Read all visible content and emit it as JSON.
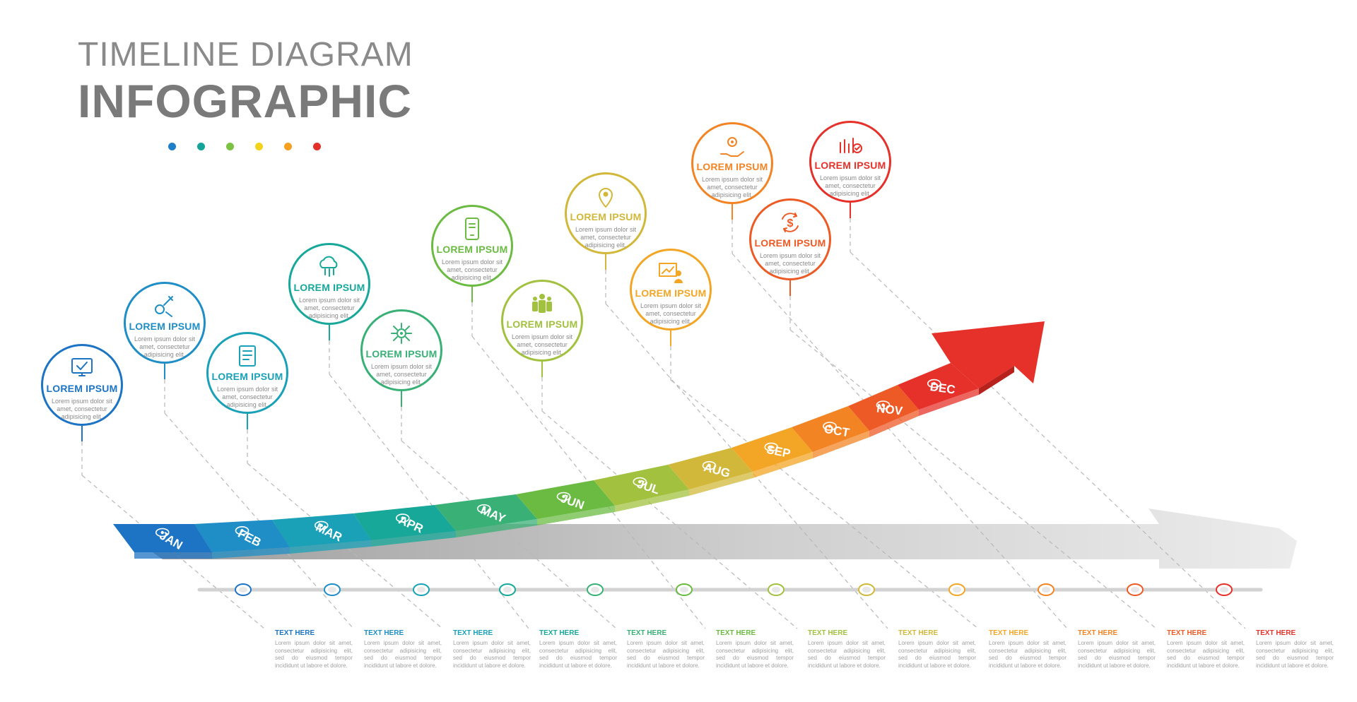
{
  "header": {
    "title_line1": "TIMELINE DIAGRAM",
    "title_line2": "INFOGRAPHIC",
    "dot_colors": [
      "#1e7ec8",
      "#14a39a",
      "#7cc242",
      "#f2d21b",
      "#f5a020",
      "#e4302a"
    ]
  },
  "months": [
    {
      "label": "JAN",
      "color": "#1d74c4",
      "icon": "monitor-check-icon"
    },
    {
      "label": "FEB",
      "color": "#1f8ec6",
      "icon": "wrench-gear-icon"
    },
    {
      "label": "MAR",
      "color": "#1aa1b8",
      "icon": "document-list-icon"
    },
    {
      "label": "APR",
      "color": "#17a89a",
      "icon": "cloud-network-icon"
    },
    {
      "label": "MAY",
      "color": "#38b076",
      "icon": "network-hub-icon"
    },
    {
      "label": "JUN",
      "color": "#6bbb43",
      "icon": "mobile-touch-icon"
    },
    {
      "label": "JUL",
      "color": "#a1c13f",
      "icon": "team-group-icon"
    },
    {
      "label": "AUG",
      "color": "#d2b83a",
      "icon": "location-pin-icon"
    },
    {
      "label": "SEP",
      "color": "#f3a626",
      "icon": "presentation-icon"
    },
    {
      "label": "OCT",
      "color": "#f38424",
      "icon": "hand-gear-icon"
    },
    {
      "label": "NOV",
      "color": "#ee5a25",
      "icon": "dollar-cycle-icon"
    },
    {
      "label": "DEC",
      "color": "#e5312a",
      "icon": "chart-people-icon"
    }
  ],
  "cards": {
    "title": "LOREM IPSUM",
    "description": "Lorem ipsum dolor sit amet, consectetur adipisicing elit."
  },
  "notes": {
    "title": "TEXT HERE",
    "body": "Lorem ipsum dolor sit amet, consectetur adipisicing elit, sed do eiusmod tempor incididunt ut labore et dolore."
  }
}
